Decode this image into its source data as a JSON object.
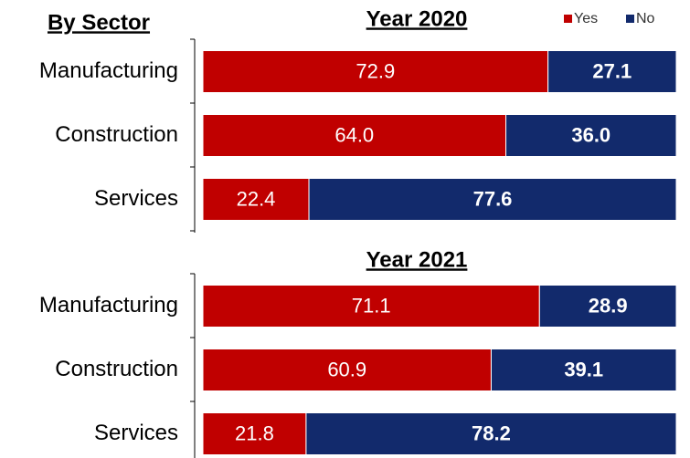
{
  "header": "By Sector",
  "chart_data": [
    {
      "type": "stacked_bar_horizontal",
      "title": "Year 2020",
      "categories": [
        "Manufacturing",
        "Construction",
        "Services"
      ],
      "series": [
        {
          "name": "Yes",
          "color": "#c00000",
          "values": [
            72.9,
            64.0,
            22.4
          ],
          "value_labels": [
            "72.9",
            "64.0",
            "22.4"
          ]
        },
        {
          "name": "No",
          "color": "#122a6c",
          "values": [
            27.1,
            36.0,
            77.6
          ],
          "value_labels": [
            "27.1",
            "36.0",
            "77.6"
          ]
        }
      ],
      "xlim": [
        0,
        100
      ],
      "legend": "top-right"
    },
    {
      "type": "stacked_bar_horizontal",
      "title": "Year 2021",
      "categories": [
        "Manufacturing",
        "Construction",
        "Services"
      ],
      "series": [
        {
          "name": "Yes",
          "color": "#c00000",
          "values": [
            71.1,
            60.9,
            21.8
          ],
          "value_labels": [
            "71.1",
            "60.9",
            "21.8"
          ]
        },
        {
          "name": "No",
          "color": "#122a6c",
          "values": [
            28.9,
            39.1,
            78.2
          ],
          "value_labels": [
            "28.9",
            "39.1",
            "78.2"
          ]
        }
      ],
      "xlim": [
        0,
        100
      ]
    }
  ]
}
